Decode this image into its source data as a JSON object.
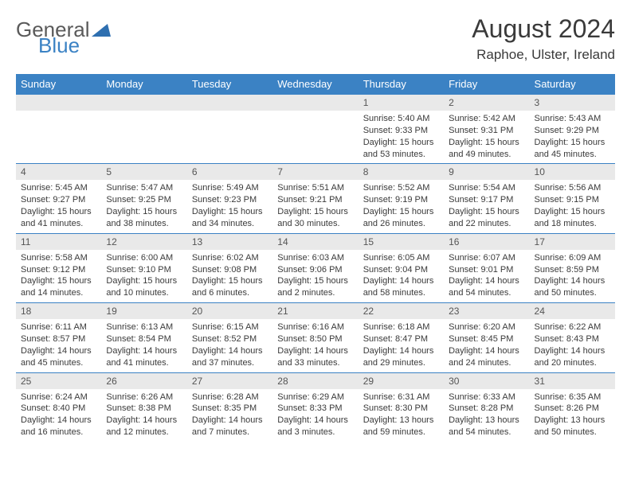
{
  "logo": {
    "general": "General",
    "blue": "Blue"
  },
  "header": {
    "month": "August 2024",
    "location": "Raphoe, Ulster, Ireland"
  },
  "colors": {
    "header_bg": "#3b82c4",
    "header_text": "#ffffff",
    "daynum_bg": "#e9e9e9",
    "border": "#3b82c4",
    "text": "#3a3a3a"
  },
  "dayNames": [
    "Sunday",
    "Monday",
    "Tuesday",
    "Wednesday",
    "Thursday",
    "Friday",
    "Saturday"
  ],
  "weeks": [
    [
      null,
      null,
      null,
      null,
      {
        "n": "1",
        "sr": "5:40 AM",
        "ss": "9:33 PM",
        "dl": "15 hours and 53 minutes."
      },
      {
        "n": "2",
        "sr": "5:42 AM",
        "ss": "9:31 PM",
        "dl": "15 hours and 49 minutes."
      },
      {
        "n": "3",
        "sr": "5:43 AM",
        "ss": "9:29 PM",
        "dl": "15 hours and 45 minutes."
      }
    ],
    [
      {
        "n": "4",
        "sr": "5:45 AM",
        "ss": "9:27 PM",
        "dl": "15 hours and 41 minutes."
      },
      {
        "n": "5",
        "sr": "5:47 AM",
        "ss": "9:25 PM",
        "dl": "15 hours and 38 minutes."
      },
      {
        "n": "6",
        "sr": "5:49 AM",
        "ss": "9:23 PM",
        "dl": "15 hours and 34 minutes."
      },
      {
        "n": "7",
        "sr": "5:51 AM",
        "ss": "9:21 PM",
        "dl": "15 hours and 30 minutes."
      },
      {
        "n": "8",
        "sr": "5:52 AM",
        "ss": "9:19 PM",
        "dl": "15 hours and 26 minutes."
      },
      {
        "n": "9",
        "sr": "5:54 AM",
        "ss": "9:17 PM",
        "dl": "15 hours and 22 minutes."
      },
      {
        "n": "10",
        "sr": "5:56 AM",
        "ss": "9:15 PM",
        "dl": "15 hours and 18 minutes."
      }
    ],
    [
      {
        "n": "11",
        "sr": "5:58 AM",
        "ss": "9:12 PM",
        "dl": "15 hours and 14 minutes."
      },
      {
        "n": "12",
        "sr": "6:00 AM",
        "ss": "9:10 PM",
        "dl": "15 hours and 10 minutes."
      },
      {
        "n": "13",
        "sr": "6:02 AM",
        "ss": "9:08 PM",
        "dl": "15 hours and 6 minutes."
      },
      {
        "n": "14",
        "sr": "6:03 AM",
        "ss": "9:06 PM",
        "dl": "15 hours and 2 minutes."
      },
      {
        "n": "15",
        "sr": "6:05 AM",
        "ss": "9:04 PM",
        "dl": "14 hours and 58 minutes."
      },
      {
        "n": "16",
        "sr": "6:07 AM",
        "ss": "9:01 PM",
        "dl": "14 hours and 54 minutes."
      },
      {
        "n": "17",
        "sr": "6:09 AM",
        "ss": "8:59 PM",
        "dl": "14 hours and 50 minutes."
      }
    ],
    [
      {
        "n": "18",
        "sr": "6:11 AM",
        "ss": "8:57 PM",
        "dl": "14 hours and 45 minutes."
      },
      {
        "n": "19",
        "sr": "6:13 AM",
        "ss": "8:54 PM",
        "dl": "14 hours and 41 minutes."
      },
      {
        "n": "20",
        "sr": "6:15 AM",
        "ss": "8:52 PM",
        "dl": "14 hours and 37 minutes."
      },
      {
        "n": "21",
        "sr": "6:16 AM",
        "ss": "8:50 PM",
        "dl": "14 hours and 33 minutes."
      },
      {
        "n": "22",
        "sr": "6:18 AM",
        "ss": "8:47 PM",
        "dl": "14 hours and 29 minutes."
      },
      {
        "n": "23",
        "sr": "6:20 AM",
        "ss": "8:45 PM",
        "dl": "14 hours and 24 minutes."
      },
      {
        "n": "24",
        "sr": "6:22 AM",
        "ss": "8:43 PM",
        "dl": "14 hours and 20 minutes."
      }
    ],
    [
      {
        "n": "25",
        "sr": "6:24 AM",
        "ss": "8:40 PM",
        "dl": "14 hours and 16 minutes."
      },
      {
        "n": "26",
        "sr": "6:26 AM",
        "ss": "8:38 PM",
        "dl": "14 hours and 12 minutes."
      },
      {
        "n": "27",
        "sr": "6:28 AM",
        "ss": "8:35 PM",
        "dl": "14 hours and 7 minutes."
      },
      {
        "n": "28",
        "sr": "6:29 AM",
        "ss": "8:33 PM",
        "dl": "14 hours and 3 minutes."
      },
      {
        "n": "29",
        "sr": "6:31 AM",
        "ss": "8:30 PM",
        "dl": "13 hours and 59 minutes."
      },
      {
        "n": "30",
        "sr": "6:33 AM",
        "ss": "8:28 PM",
        "dl": "13 hours and 54 minutes."
      },
      {
        "n": "31",
        "sr": "6:35 AM",
        "ss": "8:26 PM",
        "dl": "13 hours and 50 minutes."
      }
    ]
  ],
  "labels": {
    "sunrise": "Sunrise:",
    "sunset": "Sunset:",
    "daylight": "Daylight:"
  }
}
